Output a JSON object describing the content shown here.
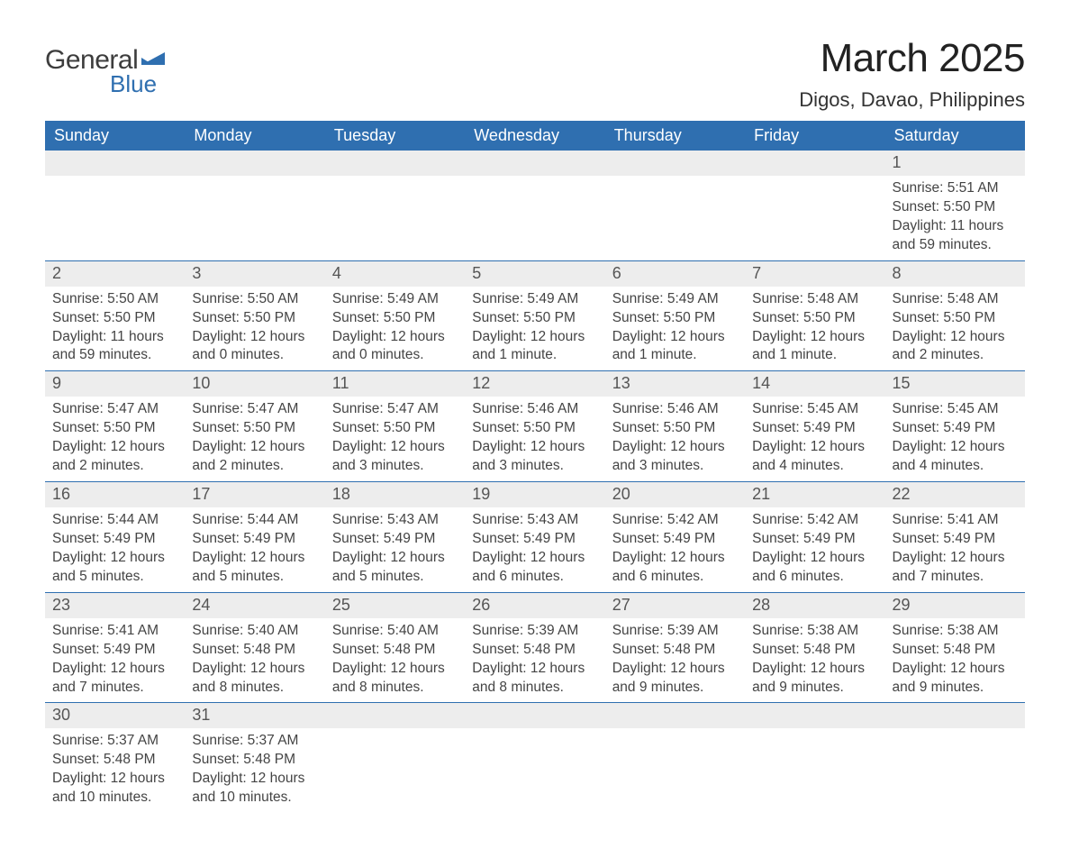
{
  "brand": {
    "general": "General",
    "blue": "Blue",
    "tri_color": "#2f6fb0"
  },
  "title": "March 2025",
  "location": "Digos, Davao, Philippines",
  "colors": {
    "header_bg": "#2f6fb0",
    "header_text": "#ffffff",
    "daynum_bg": "#ededed",
    "row_divider": "#2f6fb0",
    "body_text": "#444444",
    "page_bg": "#ffffff"
  },
  "typography": {
    "title_fontsize": 44,
    "location_fontsize": 22,
    "weekday_fontsize": 18,
    "daynum_fontsize": 18,
    "body_fontsize": 15.5
  },
  "layout": {
    "columns": 7,
    "rows": 6,
    "first_day_column_index": 6
  },
  "weekdays": [
    "Sunday",
    "Monday",
    "Tuesday",
    "Wednesday",
    "Thursday",
    "Friday",
    "Saturday"
  ],
  "labels": {
    "sunrise": "Sunrise:",
    "sunset": "Sunset:",
    "daylight": "Daylight:"
  },
  "days": [
    {
      "n": 1,
      "sunrise": "5:51 AM",
      "sunset": "5:50 PM",
      "daylight": "11 hours and 59 minutes."
    },
    {
      "n": 2,
      "sunrise": "5:50 AM",
      "sunset": "5:50 PM",
      "daylight": "11 hours and 59 minutes."
    },
    {
      "n": 3,
      "sunrise": "5:50 AM",
      "sunset": "5:50 PM",
      "daylight": "12 hours and 0 minutes."
    },
    {
      "n": 4,
      "sunrise": "5:49 AM",
      "sunset": "5:50 PM",
      "daylight": "12 hours and 0 minutes."
    },
    {
      "n": 5,
      "sunrise": "5:49 AM",
      "sunset": "5:50 PM",
      "daylight": "12 hours and 1 minute."
    },
    {
      "n": 6,
      "sunrise": "5:49 AM",
      "sunset": "5:50 PM",
      "daylight": "12 hours and 1 minute."
    },
    {
      "n": 7,
      "sunrise": "5:48 AM",
      "sunset": "5:50 PM",
      "daylight": "12 hours and 1 minute."
    },
    {
      "n": 8,
      "sunrise": "5:48 AM",
      "sunset": "5:50 PM",
      "daylight": "12 hours and 2 minutes."
    },
    {
      "n": 9,
      "sunrise": "5:47 AM",
      "sunset": "5:50 PM",
      "daylight": "12 hours and 2 minutes."
    },
    {
      "n": 10,
      "sunrise": "5:47 AM",
      "sunset": "5:50 PM",
      "daylight": "12 hours and 2 minutes."
    },
    {
      "n": 11,
      "sunrise": "5:47 AM",
      "sunset": "5:50 PM",
      "daylight": "12 hours and 3 minutes."
    },
    {
      "n": 12,
      "sunrise": "5:46 AM",
      "sunset": "5:50 PM",
      "daylight": "12 hours and 3 minutes."
    },
    {
      "n": 13,
      "sunrise": "5:46 AM",
      "sunset": "5:50 PM",
      "daylight": "12 hours and 3 minutes."
    },
    {
      "n": 14,
      "sunrise": "5:45 AM",
      "sunset": "5:49 PM",
      "daylight": "12 hours and 4 minutes."
    },
    {
      "n": 15,
      "sunrise": "5:45 AM",
      "sunset": "5:49 PM",
      "daylight": "12 hours and 4 minutes."
    },
    {
      "n": 16,
      "sunrise": "5:44 AM",
      "sunset": "5:49 PM",
      "daylight": "12 hours and 5 minutes."
    },
    {
      "n": 17,
      "sunrise": "5:44 AM",
      "sunset": "5:49 PM",
      "daylight": "12 hours and 5 minutes."
    },
    {
      "n": 18,
      "sunrise": "5:43 AM",
      "sunset": "5:49 PM",
      "daylight": "12 hours and 5 minutes."
    },
    {
      "n": 19,
      "sunrise": "5:43 AM",
      "sunset": "5:49 PM",
      "daylight": "12 hours and 6 minutes."
    },
    {
      "n": 20,
      "sunrise": "5:42 AM",
      "sunset": "5:49 PM",
      "daylight": "12 hours and 6 minutes."
    },
    {
      "n": 21,
      "sunrise": "5:42 AM",
      "sunset": "5:49 PM",
      "daylight": "12 hours and 6 minutes."
    },
    {
      "n": 22,
      "sunrise": "5:41 AM",
      "sunset": "5:49 PM",
      "daylight": "12 hours and 7 minutes."
    },
    {
      "n": 23,
      "sunrise": "5:41 AM",
      "sunset": "5:49 PM",
      "daylight": "12 hours and 7 minutes."
    },
    {
      "n": 24,
      "sunrise": "5:40 AM",
      "sunset": "5:48 PM",
      "daylight": "12 hours and 8 minutes."
    },
    {
      "n": 25,
      "sunrise": "5:40 AM",
      "sunset": "5:48 PM",
      "daylight": "12 hours and 8 minutes."
    },
    {
      "n": 26,
      "sunrise": "5:39 AM",
      "sunset": "5:48 PM",
      "daylight": "12 hours and 8 minutes."
    },
    {
      "n": 27,
      "sunrise": "5:39 AM",
      "sunset": "5:48 PM",
      "daylight": "12 hours and 9 minutes."
    },
    {
      "n": 28,
      "sunrise": "5:38 AM",
      "sunset": "5:48 PM",
      "daylight": "12 hours and 9 minutes."
    },
    {
      "n": 29,
      "sunrise": "5:38 AM",
      "sunset": "5:48 PM",
      "daylight": "12 hours and 9 minutes."
    },
    {
      "n": 30,
      "sunrise": "5:37 AM",
      "sunset": "5:48 PM",
      "daylight": "12 hours and 10 minutes."
    },
    {
      "n": 31,
      "sunrise": "5:37 AM",
      "sunset": "5:48 PM",
      "daylight": "12 hours and 10 minutes."
    }
  ]
}
